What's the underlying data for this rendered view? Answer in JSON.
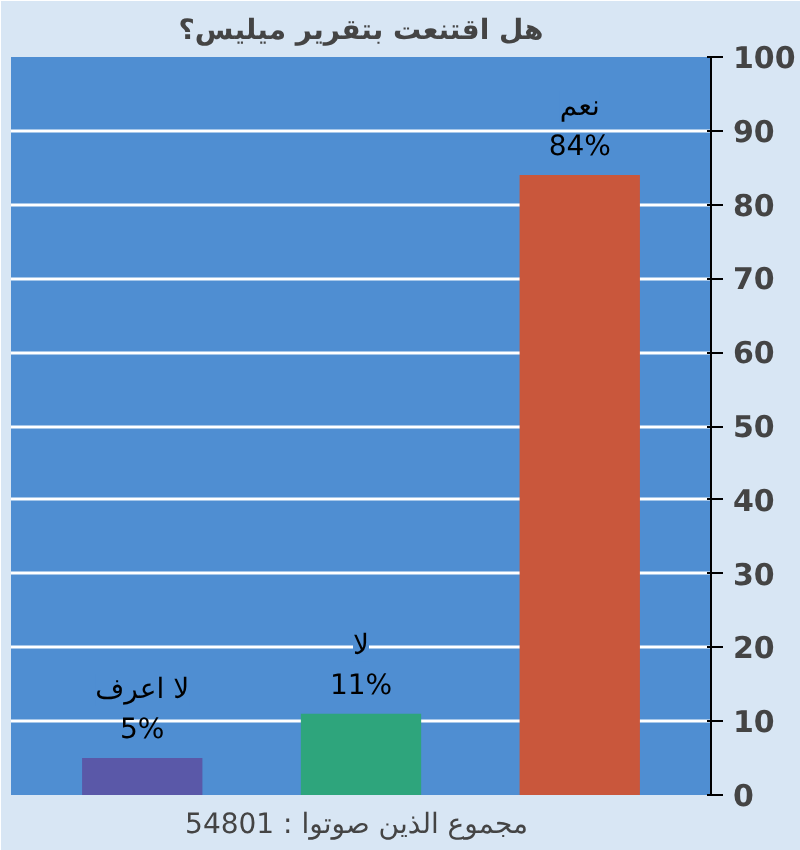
{
  "chart_data": {
    "type": "bar",
    "title": "هل اقتنعت بتقرير ميليس؟",
    "categories": [
      "لا اعرف",
      "لا",
      "نعم"
    ],
    "values": [
      5,
      11,
      84
    ],
    "colors": [
      "#5a58a8",
      "#2ea57c",
      "#c9573c"
    ],
    "value_labels": [
      "5%",
      "11%",
      "84%"
    ],
    "ylim": [
      0,
      100
    ],
    "yticks": [
      0,
      10,
      20,
      30,
      40,
      50,
      60,
      70,
      80,
      90,
      100
    ],
    "grid": "y",
    "annotations": [
      "مجموع الذين صوتوا :  54801"
    ]
  }
}
